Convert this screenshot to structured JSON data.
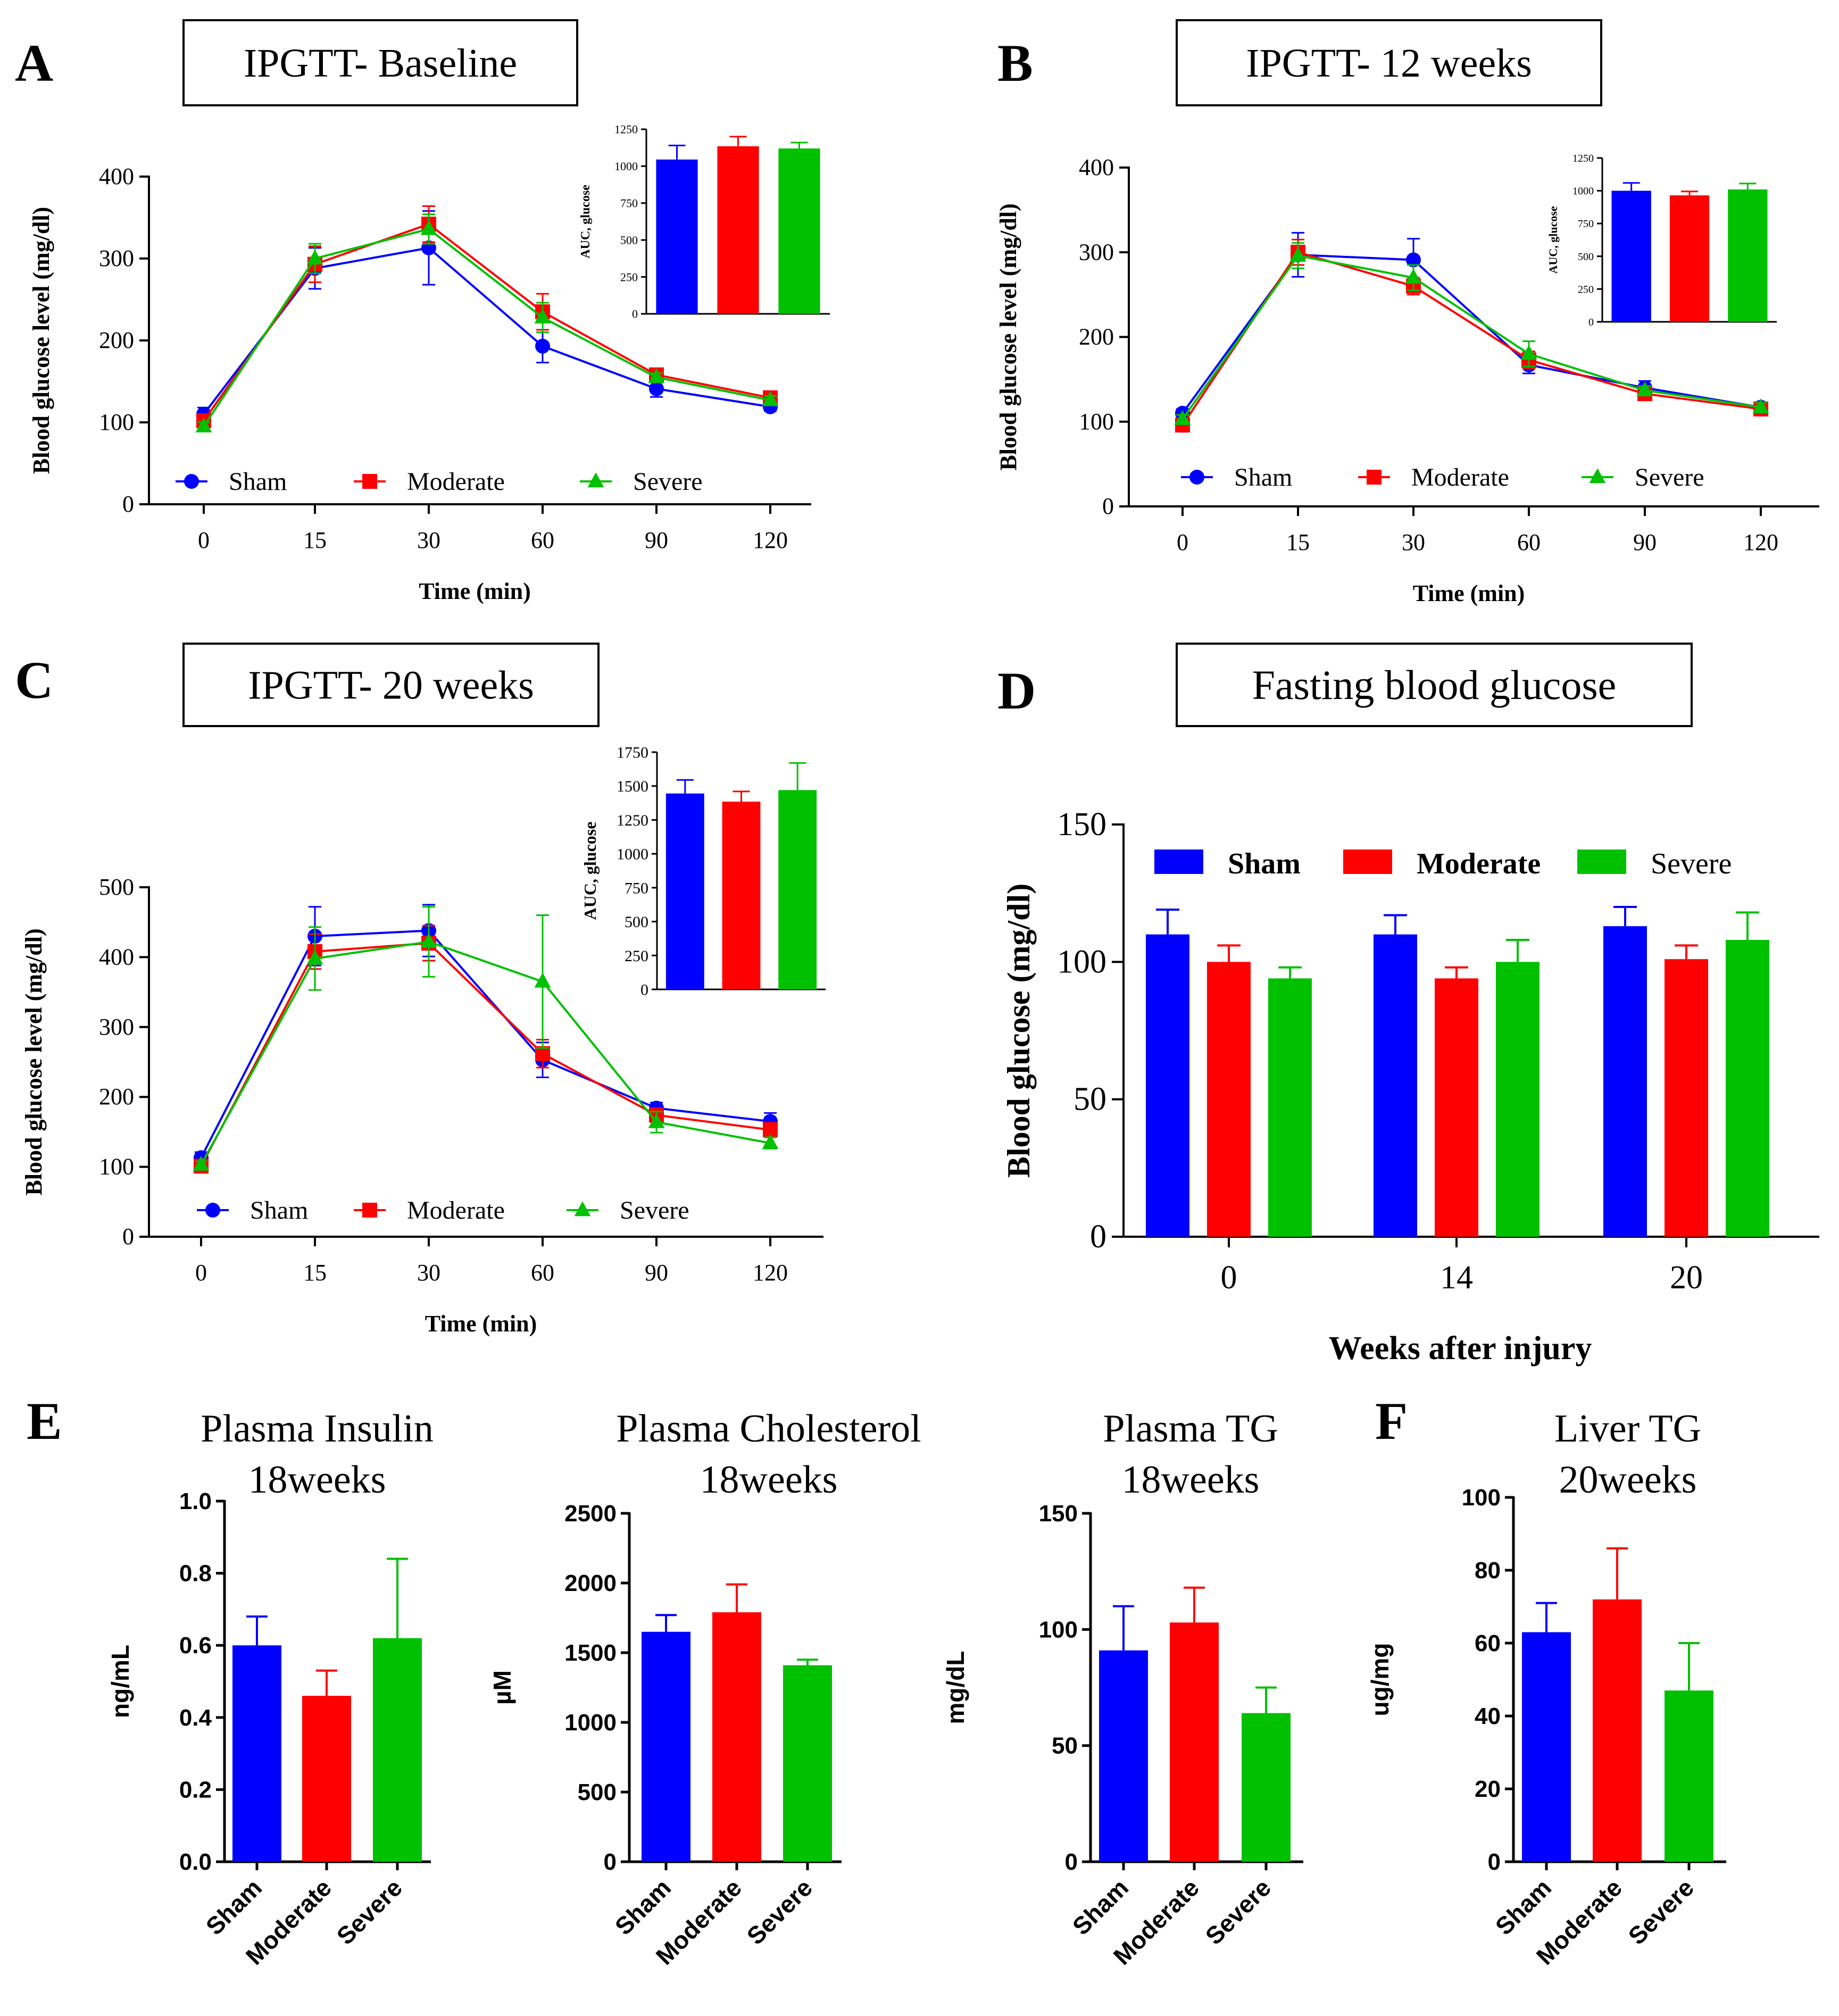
{
  "colors": {
    "Sham": "#0000ff",
    "Moderate": "#ff0000",
    "Severe": "#00c000"
  },
  "chart_data": [
    {
      "panel_letter": "A",
      "title": "IPGTT- Baseline",
      "type": "line",
      "x": [
        0,
        15,
        30,
        60,
        90,
        120
      ],
      "x_tick_labels": [
        "0",
        "15",
        "30",
        "60",
        "90",
        "120"
      ],
      "xlabel": "Time (min)",
      "ylabel": "Blood glucose level (mg/dl)",
      "ylim": [
        0,
        400
      ],
      "y_ticks": [
        0,
        100,
        200,
        300,
        400
      ],
      "legend": [
        "Sham",
        "Moderate",
        "Severe"
      ],
      "series": [
        {
          "name": "Sham",
          "values": [
            110,
            288,
            313,
            193,
            141,
            119
          ],
          "errors": [
            8,
            25,
            45,
            20,
            10,
            5
          ]
        },
        {
          "name": "Moderate",
          "values": [
            102,
            293,
            342,
            235,
            158,
            130
          ],
          "errors": [
            8,
            22,
            22,
            22,
            5,
            5
          ]
        },
        {
          "name": "Severe",
          "values": [
            95,
            300,
            336,
            228,
            155,
            127
          ],
          "errors": [
            5,
            18,
            18,
            18,
            5,
            5
          ]
        }
      ],
      "inset": {
        "type": "bar",
        "ylabel": "AUC, glucose",
        "ylim": [
          0,
          1250
        ],
        "y_ticks": [
          0,
          250,
          500,
          750,
          1000,
          1250
        ],
        "categories": [
          "Sham",
          "Moderate",
          "Severe"
        ],
        "values": [
          1045,
          1135,
          1120
        ],
        "errors": [
          95,
          65,
          40
        ]
      }
    },
    {
      "panel_letter": "B",
      "title": "IPGTT- 12 weeks",
      "type": "line",
      "x": [
        0,
        15,
        30,
        60,
        90,
        120
      ],
      "x_tick_labels": [
        "0",
        "15",
        "30",
        "60",
        "90",
        "120"
      ],
      "xlabel": "Time (min)",
      "ylabel": "Blood glucose level (mg/dl)",
      "ylim": [
        0,
        400
      ],
      "y_ticks": [
        0,
        100,
        200,
        300,
        400
      ],
      "legend": [
        "Sham",
        "Moderate",
        "Severe"
      ],
      "series": [
        {
          "name": "Sham",
          "values": [
            110,
            297,
            291,
            167,
            140,
            117
          ],
          "errors": [
            5,
            26,
            25,
            10,
            8,
            5
          ]
        },
        {
          "name": "Moderate",
          "values": [
            96,
            300,
            260,
            173,
            133,
            115
          ],
          "errors": [
            5,
            15,
            10,
            10,
            5,
            5
          ]
        },
        {
          "name": "Severe",
          "values": [
            103,
            296,
            270,
            180,
            137,
            117
          ],
          "errors": [
            5,
            15,
            15,
            15,
            5,
            5
          ]
        }
      ],
      "inset": {
        "type": "bar",
        "ylabel": "AUC, glucose",
        "ylim": [
          0,
          1250
        ],
        "y_ticks": [
          0,
          250,
          500,
          750,
          1000,
          1250
        ],
        "categories": [
          "Sham",
          "Moderate",
          "Severe"
        ],
        "values": [
          1000,
          965,
          1010
        ],
        "errors": [
          60,
          30,
          45
        ]
      }
    },
    {
      "panel_letter": "C",
      "title": "IPGTT- 20 weeks",
      "type": "line",
      "x": [
        0,
        15,
        30,
        60,
        90,
        120
      ],
      "x_tick_labels": [
        "0",
        "15",
        "30",
        "60",
        "90",
        "120"
      ],
      "xlabel": "Time (min)",
      "ylabel": "Blood glucose level (mg/dl)",
      "ylim": [
        0,
        500
      ],
      "y_ticks": [
        0,
        100,
        200,
        300,
        400,
        500
      ],
      "legend": [
        "Sham",
        "Moderate",
        "Severe"
      ],
      "series": [
        {
          "name": "Sham",
          "values": [
            113,
            430,
            438,
            253,
            184,
            165
          ],
          "errors": [
            8,
            42,
            37,
            25,
            8,
            12
          ]
        },
        {
          "name": "Moderate",
          "values": [
            101,
            408,
            420,
            262,
            174,
            153
          ],
          "errors": [
            5,
            25,
            25,
            20,
            10,
            10
          ]
        },
        {
          "name": "Severe",
          "values": [
            103,
            398,
            422,
            365,
            164,
            134
          ],
          "errors": [
            5,
            45,
            50,
            95,
            15,
            8
          ]
        }
      ],
      "inset": {
        "type": "bar",
        "ylabel": "AUC, glucose",
        "ylim": [
          0,
          1750
        ],
        "y_ticks": [
          0,
          250,
          500,
          750,
          1000,
          1250,
          1500,
          1750
        ],
        "categories": [
          "Sham",
          "Moderate",
          "Severe"
        ],
        "values": [
          1445,
          1385,
          1470
        ],
        "errors": [
          100,
          75,
          200
        ]
      }
    },
    {
      "panel_letter": "D",
      "title": "Fasting blood glucose",
      "type": "bar",
      "categories": [
        "0",
        "14",
        "20"
      ],
      "xlabel": "Weeks after injury",
      "ylabel": "Blood glucose (mg/dl)",
      "ylim": [
        0,
        150
      ],
      "y_ticks": [
        0,
        50,
        100,
        150
      ],
      "legend": [
        "Sham",
        "Moderate",
        "Severe"
      ],
      "series": [
        {
          "name": "Sham",
          "values": [
            110,
            110,
            113
          ],
          "errors": [
            9,
            7,
            7
          ]
        },
        {
          "name": "Moderate",
          "values": [
            100,
            94,
            101
          ],
          "errors": [
            6,
            4,
            5
          ]
        },
        {
          "name": "Severe",
          "values": [
            94,
            100,
            108
          ],
          "errors": [
            4,
            8,
            10
          ]
        }
      ]
    },
    {
      "panel_letter": "E",
      "title_line1": "Plasma Insulin",
      "title_line2": "18weeks",
      "type": "bar",
      "categories": [
        "Sham",
        "Moderate",
        "Severe"
      ],
      "ylabel": "ng/mL",
      "ylim": [
        0,
        1.0
      ],
      "y_ticks": [
        "0.0",
        "0.2",
        "0.4",
        "0.6",
        "0.8",
        "1.0"
      ],
      "values": [
        0.6,
        0.46,
        0.62
      ],
      "errors": [
        0.08,
        0.07,
        0.22
      ]
    },
    {
      "title_line1": "Plasma Cholesterol",
      "title_line2": "18weeks",
      "type": "bar",
      "categories": [
        "Sham",
        "Moderate",
        "Severe"
      ],
      "ylabel": "µM",
      "ylim": [
        0,
        2500
      ],
      "y_ticks": [
        "0",
        "500",
        "1000",
        "1500",
        "2000",
        "2500"
      ],
      "values": [
        1650,
        1790,
        1410
      ],
      "errors": [
        120,
        200,
        40
      ]
    },
    {
      "title_line1": "Plasma TG",
      "title_line2": "18weeks",
      "type": "bar",
      "categories": [
        "Sham",
        "Moderate",
        "Severe"
      ],
      "ylabel": "mg/dL",
      "ylim": [
        0,
        150
      ],
      "y_ticks": [
        "0",
        "50",
        "100",
        "150"
      ],
      "values": [
        91,
        103,
        64
      ],
      "errors": [
        19,
        15,
        11
      ]
    },
    {
      "panel_letter": "F",
      "title_line1": "Liver TG",
      "title_line2": "20weeks",
      "type": "bar",
      "categories": [
        "Sham",
        "Moderate",
        "Severe"
      ],
      "ylabel": "ug/mg",
      "ylim": [
        0,
        100
      ],
      "y_ticks": [
        "0",
        "20",
        "40",
        "60",
        "80",
        "100"
      ],
      "values": [
        63,
        72,
        47
      ],
      "errors": [
        8,
        14,
        13
      ]
    }
  ]
}
